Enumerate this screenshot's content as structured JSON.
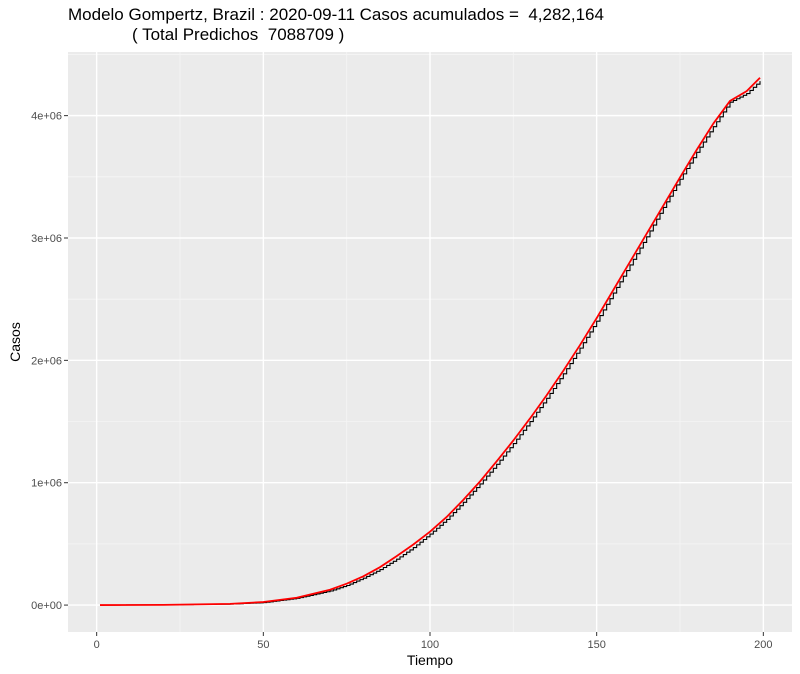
{
  "chart_data": {
    "type": "line",
    "title": "Modelo Gompertz, Brazil : 2020-09-11 Casos acumulados =  4,282,164",
    "subtitle": "( Total Predichos  7088709 )",
    "xlabel": "Tiempo",
    "ylabel": "Casos",
    "xlim": [
      -8.6,
      208.6
    ],
    "ylim": [
      -220000,
      4520000
    ],
    "x_ticks": [
      0,
      50,
      100,
      150,
      200
    ],
    "x_tick_labels": [
      "0",
      "50",
      "100",
      "150",
      "200"
    ],
    "y_ticks": [
      0,
      1000000,
      2000000,
      3000000,
      4000000
    ],
    "y_tick_labels": [
      "0e+00",
      "1e+06",
      "2e+06",
      "3e+06",
      "4e+06"
    ],
    "grid": true,
    "panel_color": "#EBEBEB",
    "series": [
      {
        "style": "step",
        "color": "#000000",
        "x": [
          1,
          20,
          40,
          50,
          60,
          70,
          75,
          80,
          85,
          90,
          95,
          100,
          105,
          110,
          115,
          120,
          125,
          130,
          135,
          140,
          145,
          150,
          155,
          160,
          165,
          170,
          175,
          180,
          185,
          190,
          195,
          199
        ],
        "y": [
          0,
          2000,
          8000,
          20000,
          55000,
          115000,
          160000,
          220000,
          290000,
          375000,
          470000,
          580000,
          700000,
          840000,
          990000,
          1150000,
          1320000,
          1500000,
          1690000,
          1890000,
          2100000,
          2320000,
          2550000,
          2780000,
          3010000,
          3250000,
          3480000,
          3700000,
          3910000,
          4110000,
          4180000,
          4282164
        ]
      },
      {
        "style": "line",
        "color": "#FF0000",
        "x": [
          1,
          20,
          40,
          50,
          60,
          70,
          75,
          80,
          85,
          90,
          95,
          100,
          105,
          110,
          115,
          120,
          125,
          130,
          135,
          140,
          145,
          150,
          155,
          160,
          165,
          170,
          175,
          180,
          185,
          190,
          195,
          199
        ],
        "y": [
          0,
          1500,
          10000,
          25000,
          60000,
          125000,
          175000,
          235000,
          310000,
          400000,
          495000,
          600000,
          720000,
          860000,
          1010000,
          1175000,
          1345000,
          1525000,
          1715000,
          1915000,
          2125000,
          2345000,
          2575000,
          2805000,
          3035000,
          3265000,
          3495000,
          3720000,
          3935000,
          4120000,
          4200000,
          4310000
        ]
      }
    ]
  }
}
